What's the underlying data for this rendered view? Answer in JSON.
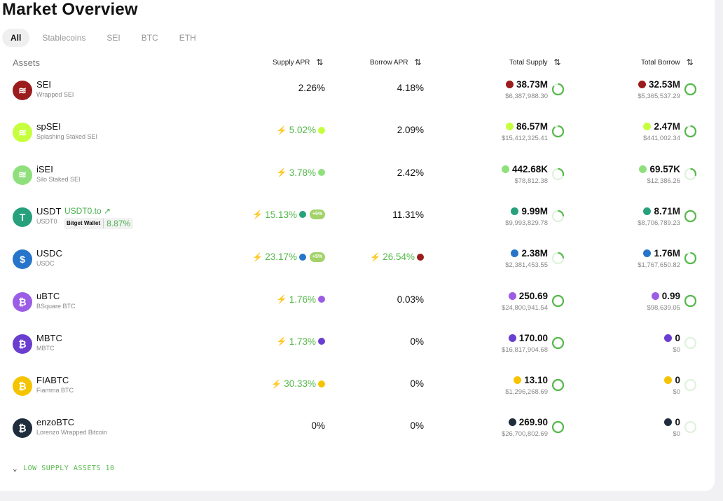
{
  "title": "Market Overview",
  "tabs": [
    "All",
    "Stablecoins",
    "SEI",
    "BTC",
    "ETH"
  ],
  "columns": {
    "assets": "Assets",
    "supply_apr": "Supply APR",
    "borrow_apr": "Borrow APR",
    "total_supply": "Total Supply",
    "total_borrow": "Total Borrow"
  },
  "sort_icon": "⇅",
  "assets": [
    {
      "name": "SEI",
      "sub": "Wrapped SEI",
      "supply_apr": "2.26%",
      "borrow_apr": "4.18%",
      "ts": "38.73M",
      "ts_usd": "$6,387,988.30",
      "tb": "32.53M",
      "tb_usd": "$5,365,537.29",
      "color": "#9b1c1c",
      "glyph": "≋",
      "sup_frac": 0.85,
      "bor_frac": 1.0
    },
    {
      "name": "spSEI",
      "sub": "Splashing Staked SEI",
      "supply_apr": "5.02%",
      "borrow_apr": "2.09%",
      "ts": "86.57M",
      "ts_usd": "$15,412,325.41",
      "tb": "2.47M",
      "tb_usd": "$441,002.34",
      "color": "#c6ff3d",
      "glyph": "≋",
      "sup_frac": 0.9,
      "bor_frac": 0.9
    },
    {
      "name": "iSEI",
      "sub": "Silo Staked SEI",
      "supply_apr": "3.78%",
      "borrow_apr": "2.42%",
      "ts": "442.68K",
      "ts_usd": "$78,812.38",
      "tb": "69.57K",
      "tb_usd": "$12,386.26",
      "color": "#8fe07d",
      "glyph": "≋",
      "sup_frac": 0.3,
      "bor_frac": 0.3
    },
    {
      "name": "USDT",
      "sub": "USDT0",
      "supply_apr": "15.13%",
      "borrow_apr": "11.31%",
      "ts": "9.99M",
      "ts_usd": "$9,993,829.78",
      "tb": "8.71M",
      "tb_usd": "$8,706,789.23",
      "color": "#26a17b",
      "glyph": "T",
      "sup_frac": 0.25,
      "bor_frac": 1.0,
      "extra_link": "USDT0.to ↗",
      "wallet": "Bitget Wallet",
      "wallet_pct": "8.87%",
      "promo": "+5%"
    },
    {
      "name": "USDC",
      "sub": "USDC",
      "supply_apr": "23.17%",
      "borrow_apr": "26.54%",
      "ts": "2.38M",
      "ts_usd": "$2,381,453.55",
      "tb": "1.76M",
      "tb_usd": "$1,767,650.82",
      "color": "#2775ca",
      "glyph": "$",
      "sup_frac": 0.25,
      "bor_frac": 0.9,
      "promo": "+5%"
    },
    {
      "name": "uBTC",
      "sub": "BSquare BTC",
      "supply_apr": "1.76%",
      "borrow_apr": "0.03%",
      "ts": "250.69",
      "ts_usd": "$24,800,941.54",
      "tb": "0.99",
      "tb_usd": "$98,639.05",
      "color": "#9b5de5",
      "glyph": "₿",
      "sup_frac": 1.0,
      "bor_frac": 1.0
    },
    {
      "name": "MBTC",
      "sub": "MBTC",
      "supply_apr": "1.73%",
      "borrow_apr": "0%",
      "ts": "170.00",
      "ts_usd": "$16,817,904.68",
      "tb": "0",
      "tb_usd": "$0",
      "color": "#6a3fd0",
      "glyph": "₿",
      "sup_frac": 1.0,
      "bor_frac": 0.0
    },
    {
      "name": "FIABTC",
      "sub": "Fiamma BTC",
      "supply_apr": "30.33%",
      "borrow_apr": "0%",
      "ts": "13.10",
      "ts_usd": "$1,296,268.69",
      "tb": "0",
      "tb_usd": "$0",
      "color": "#f5c400",
      "glyph": "₿",
      "sup_frac": 1.0,
      "bor_frac": 0.0
    },
    {
      "name": "enzoBTC",
      "sub": "Lorenzo Wrapped Bitcoin",
      "supply_apr": "0%",
      "borrow_apr": "0%",
      "ts": "269.90",
      "ts_usd": "$26,700,802.69",
      "tb": "0",
      "tb_usd": "$0",
      "color": "#1f2d3d",
      "glyph": "₿",
      "sup_frac": 1.0,
      "bor_frac": 0.0
    }
  ],
  "footer": {
    "chevron": "⌄",
    "text": "LOW SUPPLY ASSETS 10"
  },
  "colors": {
    "green": "#55b94a",
    "ring_track": "#dff2dc"
  }
}
